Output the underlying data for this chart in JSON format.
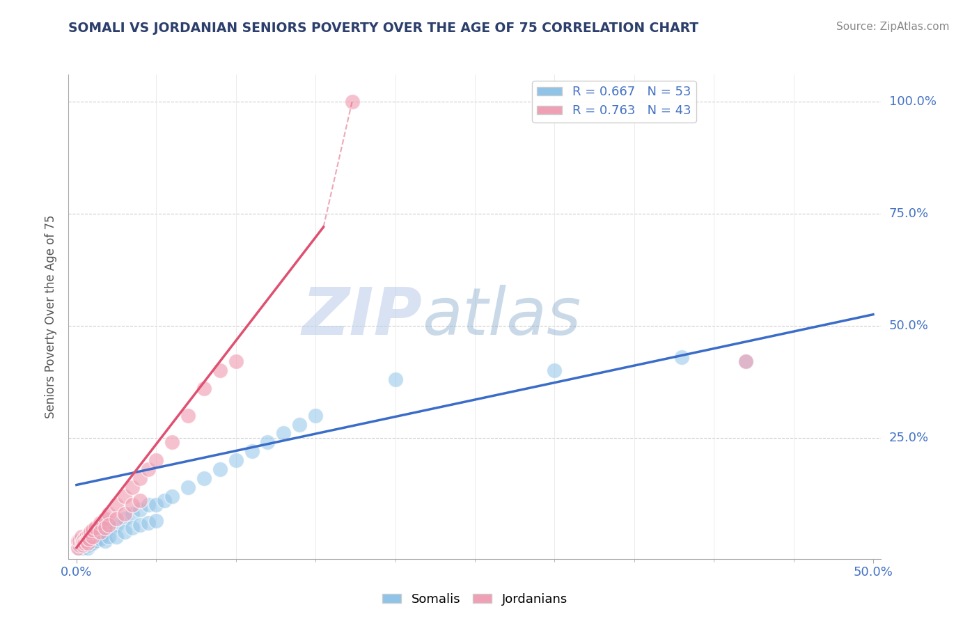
{
  "title": "SOMALI VS JORDANIAN SENIORS POVERTY OVER THE AGE OF 75 CORRELATION CHART",
  "source": "Source: ZipAtlas.com",
  "ylabel": "Seniors Poverty Over the Age of 75",
  "xlim": [
    -0.005,
    0.505
  ],
  "ylim": [
    -0.02,
    1.06
  ],
  "somali_R": 0.667,
  "somali_N": 53,
  "jordanian_R": 0.763,
  "jordanian_N": 43,
  "somali_color": "#90C3E8",
  "jordanian_color": "#F0A0B5",
  "somali_line_color": "#3A6CC8",
  "jordanian_line_color": "#E05070",
  "watermark_zip": "ZIP",
  "watermark_atlas": "atlas",
  "background_color": "#FFFFFF",
  "grid_color": "#CCCCCC",
  "title_color": "#2C3E6B",
  "tick_label_color": "#4472C4",
  "somali_trendline": [
    0.0,
    0.145,
    0.5,
    0.525
  ],
  "jordanian_trendline_solid": [
    0.0,
    0.005,
    0.155,
    0.72
  ],
  "jordanian_trendline_dashed": [
    0.155,
    0.72,
    0.173,
    1.0
  ],
  "somali_points": [
    [
      0.001,
      0.01
    ],
    [
      0.002,
      0.02
    ],
    [
      0.002,
      0.005
    ],
    [
      0.003,
      0.01
    ],
    [
      0.003,
      0.02
    ],
    [
      0.004,
      0.015
    ],
    [
      0.004,
      0.005
    ],
    [
      0.005,
      0.02
    ],
    [
      0.005,
      0.01
    ],
    [
      0.006,
      0.025
    ],
    [
      0.006,
      0.015
    ],
    [
      0.007,
      0.02
    ],
    [
      0.007,
      0.005
    ],
    [
      0.008,
      0.03
    ],
    [
      0.008,
      0.01
    ],
    [
      0.009,
      0.02
    ],
    [
      0.01,
      0.04
    ],
    [
      0.01,
      0.015
    ],
    [
      0.012,
      0.035
    ],
    [
      0.012,
      0.02
    ],
    [
      0.015,
      0.05
    ],
    [
      0.015,
      0.025
    ],
    [
      0.018,
      0.04
    ],
    [
      0.018,
      0.02
    ],
    [
      0.02,
      0.06
    ],
    [
      0.02,
      0.03
    ],
    [
      0.025,
      0.055
    ],
    [
      0.025,
      0.03
    ],
    [
      0.03,
      0.07
    ],
    [
      0.03,
      0.04
    ],
    [
      0.035,
      0.08
    ],
    [
      0.035,
      0.05
    ],
    [
      0.04,
      0.09
    ],
    [
      0.04,
      0.055
    ],
    [
      0.045,
      0.1
    ],
    [
      0.045,
      0.06
    ],
    [
      0.05,
      0.1
    ],
    [
      0.05,
      0.065
    ],
    [
      0.055,
      0.11
    ],
    [
      0.06,
      0.12
    ],
    [
      0.07,
      0.14
    ],
    [
      0.08,
      0.16
    ],
    [
      0.09,
      0.18
    ],
    [
      0.1,
      0.2
    ],
    [
      0.11,
      0.22
    ],
    [
      0.12,
      0.24
    ],
    [
      0.13,
      0.26
    ],
    [
      0.14,
      0.28
    ],
    [
      0.15,
      0.3
    ],
    [
      0.2,
      0.38
    ],
    [
      0.3,
      0.4
    ],
    [
      0.38,
      0.43
    ],
    [
      0.42,
      0.42
    ]
  ],
  "jordanian_points": [
    [
      0.001,
      0.005
    ],
    [
      0.001,
      0.02
    ],
    [
      0.002,
      0.01
    ],
    [
      0.002,
      0.02
    ],
    [
      0.003,
      0.015
    ],
    [
      0.003,
      0.03
    ],
    [
      0.004,
      0.01
    ],
    [
      0.004,
      0.02
    ],
    [
      0.005,
      0.025
    ],
    [
      0.005,
      0.015
    ],
    [
      0.006,
      0.03
    ],
    [
      0.006,
      0.02
    ],
    [
      0.007,
      0.025
    ],
    [
      0.007,
      0.015
    ],
    [
      0.008,
      0.035
    ],
    [
      0.008,
      0.025
    ],
    [
      0.009,
      0.04
    ],
    [
      0.01,
      0.03
    ],
    [
      0.01,
      0.045
    ],
    [
      0.012,
      0.05
    ],
    [
      0.015,
      0.06
    ],
    [
      0.015,
      0.04
    ],
    [
      0.018,
      0.07
    ],
    [
      0.018,
      0.05
    ],
    [
      0.02,
      0.08
    ],
    [
      0.02,
      0.055
    ],
    [
      0.025,
      0.1
    ],
    [
      0.025,
      0.07
    ],
    [
      0.03,
      0.12
    ],
    [
      0.03,
      0.08
    ],
    [
      0.035,
      0.14
    ],
    [
      0.035,
      0.1
    ],
    [
      0.04,
      0.16
    ],
    [
      0.04,
      0.11
    ],
    [
      0.045,
      0.18
    ],
    [
      0.05,
      0.2
    ],
    [
      0.06,
      0.24
    ],
    [
      0.07,
      0.3
    ],
    [
      0.08,
      0.36
    ],
    [
      0.09,
      0.4
    ],
    [
      0.1,
      0.42
    ],
    [
      0.173,
      1.0
    ],
    [
      0.42,
      0.42
    ]
  ]
}
